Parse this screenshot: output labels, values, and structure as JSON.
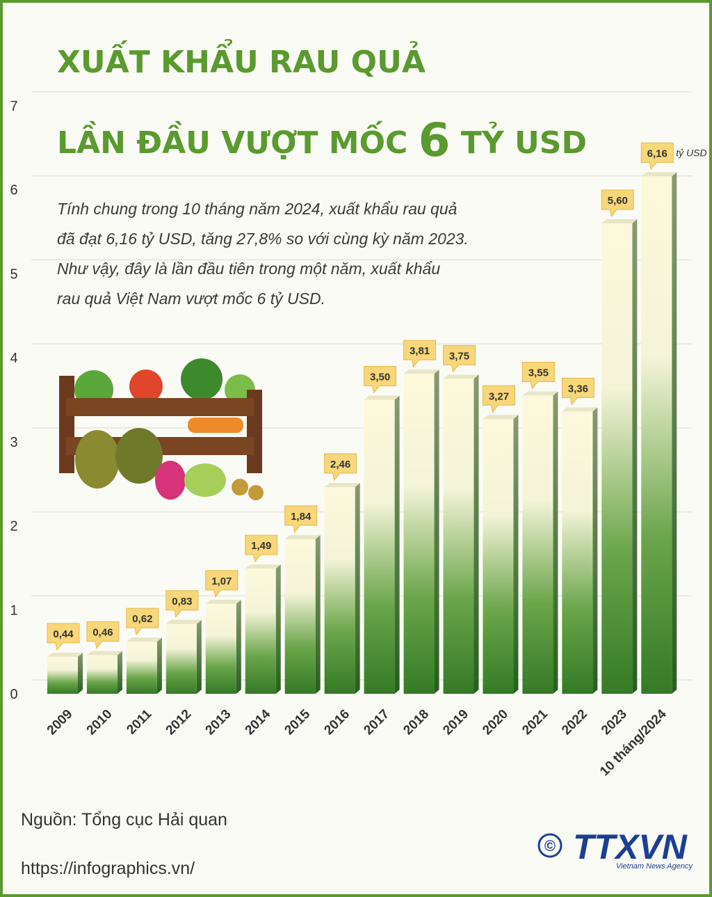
{
  "chart_data": {
    "type": "bar",
    "title_line1": "XUẤT KHẨU RAU QUẢ",
    "title_line2": {
      "before": "LẦN ĐẦU VƯỢT MỐC",
      "highlight": "6",
      "after": "TỶ USD"
    },
    "description": [
      "Tính chung trong 10 tháng năm 2024, xuất khẩu rau quả",
      "đã đạt 6,16 tỷ USD, tăng 27,8% so với cùng kỳ năm 2023.",
      "Như vậy, đây là lần đầu tiên trong một năm, xuất khẩu",
      "rau quả Việt Nam vượt mốc 6 tỷ USD."
    ],
    "categories": [
      "2009",
      "2010",
      "2011",
      "2012",
      "2013",
      "2014",
      "2015",
      "2016",
      "2017",
      "2018",
      "2019",
      "2020",
      "2021",
      "2022",
      "2023",
      "10 tháng/2024"
    ],
    "values": [
      0.44,
      0.46,
      0.62,
      0.83,
      1.07,
      1.49,
      1.84,
      2.46,
      3.5,
      3.81,
      3.75,
      3.27,
      3.55,
      3.36,
      5.6,
      6.16
    ],
    "value_labels": [
      "0,44",
      "0,46",
      "0,62",
      "0,83",
      "1,07",
      "1,49",
      "1,84",
      "2,46",
      "3,50",
      "3,81",
      "3,75",
      "3,27",
      "3,55",
      "3,36",
      "5,60",
      "6,16"
    ],
    "unit_label": "tỷ USD",
    "ylim": [
      0,
      7
    ],
    "yticks": [
      0,
      1,
      2,
      3,
      4,
      5,
      6,
      7
    ],
    "grid": true,
    "source": "Nguồn: Tổng cục Hải quan",
    "url": "https://infographics.vn/",
    "logo": {
      "copyright": "©",
      "name": "TTXVN",
      "tagline": "Vietnam News Agency"
    }
  }
}
